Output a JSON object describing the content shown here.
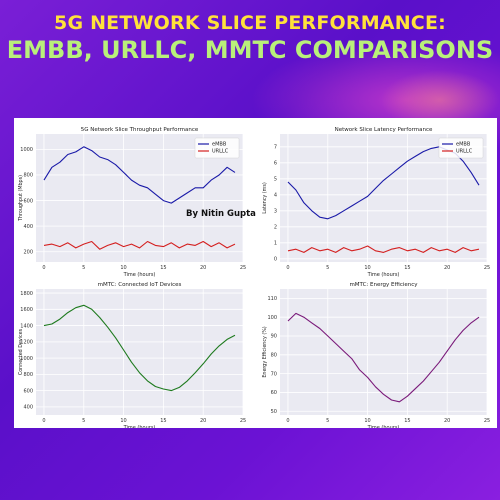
{
  "header": {
    "line1": "5G NETWORK  SLICE PERFORMANCE:",
    "line2": "EMBB, URLLC, MMTC COMPARISONS"
  },
  "watermark": "By Nitin Gupta",
  "colors": {
    "embb": "#1a1aa8",
    "urllc": "#d42020",
    "mmtc_devices": "#1e7a1e",
    "mmtc_energy": "#7a1a7a",
    "title_yellow": "#ffe23a",
    "title_green": "#b9f07a",
    "plot_bg": "#eaeaf2"
  },
  "chart_data": [
    {
      "type": "line",
      "title": "5G Network Slice Throughput Performance",
      "xlabel": "Time (hours)",
      "ylabel": "Throughput (Mbps)",
      "xlim": [
        -1,
        25
      ],
      "ylim": [
        120,
        1120
      ],
      "xticks": [
        0,
        5,
        10,
        15,
        20,
        25
      ],
      "yticks": [
        200,
        400,
        600,
        800,
        1000
      ],
      "grid": true,
      "legend": "top-right",
      "x": [
        0,
        1,
        2,
        3,
        4,
        5,
        6,
        7,
        8,
        9,
        10,
        11,
        12,
        13,
        14,
        15,
        16,
        17,
        18,
        19,
        20,
        21,
        22,
        23,
        24
      ],
      "series": [
        {
          "name": "eMBB",
          "color": "#1a1aa8",
          "values": [
            760,
            860,
            900,
            960,
            980,
            1020,
            990,
            940,
            920,
            880,
            820,
            760,
            720,
            700,
            650,
            600,
            580,
            620,
            660,
            700,
            700,
            760,
            800,
            860,
            820
          ]
        },
        {
          "name": "URLLC",
          "color": "#d42020",
          "values": [
            250,
            260,
            240,
            270,
            230,
            260,
            280,
            220,
            250,
            270,
            240,
            260,
            230,
            280,
            250,
            240,
            270,
            230,
            260,
            250,
            280,
            240,
            270,
            230,
            260
          ]
        }
      ]
    },
    {
      "type": "line",
      "title": "Network Slice Latency Performance",
      "xlabel": "Time (hours)",
      "ylabel": "Latency (ms)",
      "xlim": [
        -1,
        25
      ],
      "ylim": [
        -0.2,
        7.8
      ],
      "xticks": [
        0,
        5,
        10,
        15,
        20,
        25
      ],
      "yticks": [
        0,
        1,
        2,
        3,
        4,
        5,
        6,
        7
      ],
      "grid": true,
      "legend": "top-right",
      "x": [
        0,
        1,
        2,
        3,
        4,
        5,
        6,
        7,
        8,
        9,
        10,
        11,
        12,
        13,
        14,
        15,
        16,
        17,
        18,
        19,
        20,
        21,
        22,
        23,
        24
      ],
      "series": [
        {
          "name": "eMBB",
          "color": "#1a1aa8",
          "values": [
            4.8,
            4.3,
            3.5,
            3.0,
            2.6,
            2.5,
            2.7,
            3.0,
            3.3,
            3.6,
            3.9,
            4.4,
            4.9,
            5.3,
            5.7,
            6.1,
            6.4,
            6.7,
            6.9,
            7.0,
            6.8,
            6.6,
            6.1,
            5.4,
            4.6
          ]
        },
        {
          "name": "URLLC",
          "color": "#d42020",
          "values": [
            0.5,
            0.6,
            0.4,
            0.7,
            0.5,
            0.6,
            0.4,
            0.7,
            0.5,
            0.6,
            0.8,
            0.5,
            0.4,
            0.6,
            0.7,
            0.5,
            0.6,
            0.4,
            0.7,
            0.5,
            0.6,
            0.4,
            0.7,
            0.5,
            0.6
          ]
        }
      ]
    },
    {
      "type": "line",
      "title": "mMTC: Connected IoT Devices",
      "xlabel": "Time (hours)",
      "ylabel": "Connected Devices",
      "xlim": [
        -1,
        25
      ],
      "ylim": [
        300,
        1850
      ],
      "xticks": [
        0,
        5,
        10,
        15,
        20,
        25
      ],
      "yticks": [
        400,
        600,
        800,
        1000,
        1200,
        1400,
        1600,
        1800
      ],
      "grid": true,
      "x": [
        0,
        1,
        2,
        3,
        4,
        5,
        6,
        7,
        8,
        9,
        10,
        11,
        12,
        13,
        14,
        15,
        16,
        17,
        18,
        19,
        20,
        21,
        22,
        23,
        24
      ],
      "series": [
        {
          "name": "",
          "color": "#1e7a1e",
          "values": [
            1400,
            1420,
            1480,
            1560,
            1620,
            1650,
            1600,
            1500,
            1380,
            1250,
            1100,
            950,
            820,
            720,
            650,
            620,
            600,
            640,
            720,
            820,
            930,
            1050,
            1150,
            1230,
            1280
          ]
        }
      ]
    },
    {
      "type": "line",
      "title": "mMTC: Energy Efficiency",
      "xlabel": "Time (hours)",
      "ylabel": "Energy Efficiency (%)",
      "xlim": [
        -1,
        25
      ],
      "ylim": [
        48,
        115
      ],
      "xticks": [
        0,
        5,
        10,
        15,
        20,
        25
      ],
      "yticks": [
        50,
        60,
        70,
        80,
        90,
        100,
        110
      ],
      "grid": true,
      "x": [
        0,
        1,
        2,
        3,
        4,
        5,
        6,
        7,
        8,
        9,
        10,
        11,
        12,
        13,
        14,
        15,
        16,
        17,
        18,
        19,
        20,
        21,
        22,
        23,
        24
      ],
      "series": [
        {
          "name": "",
          "color": "#7a1a7a",
          "values": [
            98,
            102,
            100,
            97,
            94,
            90,
            86,
            82,
            78,
            72,
            68,
            63,
            59,
            56,
            55,
            58,
            62,
            66,
            71,
            76,
            82,
            88,
            93,
            97,
            100
          ]
        }
      ]
    }
  ]
}
